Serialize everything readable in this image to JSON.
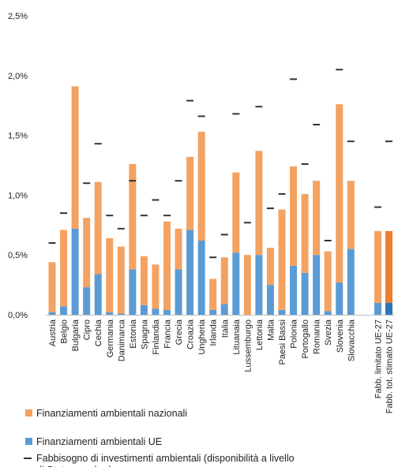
{
  "chart_data": {
    "type": "bar",
    "stacked": true,
    "title": "",
    "xlabel": "",
    "ylabel": "",
    "ylim": [
      0,
      2.5
    ],
    "yticks": [
      "0,0%",
      "0,5%",
      "1,0%",
      "1,5%",
      "2,0%",
      "2,5%"
    ],
    "grid": false,
    "legend_position": "bottom",
    "categories": [
      "Austria",
      "Belgio",
      "Bulgaria",
      "Cipro",
      "Cechia",
      "Germania",
      "Danimarca",
      "Estonia",
      "Spagna",
      "Finlandia",
      "Francia",
      "Grecia",
      "Croazia",
      "Ungheria",
      "Irlanda",
      "Italia",
      "Lituanaia",
      "Lussemburgo",
      "Lettonia",
      "Malta",
      "Paesi Bassi",
      "Polonia",
      "Portogallo",
      "Romania",
      "Svezia",
      "Slovenia",
      "Slovacchia"
    ],
    "summary_categories": [
      "Fabb. limitato UE-27",
      "Fabb. tot. stimato UE-27"
    ],
    "series": [
      {
        "name": "Finanziamenti ambientali UE",
        "color": "#5b9bd5",
        "values": [
          0.02,
          0.07,
          0.72,
          0.23,
          0.34,
          0.02,
          0.01,
          0.38,
          0.08,
          0.05,
          0.04,
          0.38,
          0.71,
          0.62,
          0.04,
          0.09,
          0.52,
          0.0,
          0.5,
          0.25,
          0.04,
          0.41,
          0.35,
          0.5,
          0.03,
          0.27,
          0.55
        ],
        "summary_values": [
          0.1,
          0.1
        ],
        "summary_colors": [
          "#5b9bd5",
          "#2e75b6"
        ]
      },
      {
        "name": "Finanziamenti ambientali nazionali",
        "color": "#f4a261",
        "values": [
          0.42,
          0.64,
          1.19,
          0.58,
          0.77,
          0.62,
          0.56,
          0.88,
          0.41,
          0.37,
          0.74,
          0.34,
          0.61,
          0.91,
          0.26,
          0.39,
          0.67,
          0.5,
          0.87,
          0.31,
          0.84,
          0.83,
          0.66,
          0.62,
          0.5,
          1.49,
          0.57
        ],
        "summary_values": [
          0.6,
          0.6
        ],
        "summary_colors": [
          "#f4a261",
          "#ed7d31"
        ]
      },
      {
        "name": "Fabbisogno di investimenti ambientali (disponibilità a livello di Stato membro)",
        "type": "marker",
        "color": "#333333",
        "values": [
          0.6,
          0.85,
          null,
          1.1,
          1.43,
          0.83,
          0.72,
          1.12,
          0.83,
          0.96,
          0.83,
          1.12,
          1.79,
          1.66,
          0.48,
          0.67,
          1.68,
          0.77,
          1.74,
          0.89,
          1.01,
          1.97,
          1.26,
          1.59,
          0.62,
          2.05,
          1.45
        ],
        "summary_values": [
          0.9,
          1.45
        ]
      }
    ],
    "legend": [
      "Finanziamenti ambientali nazionali",
      "Finanziamenti ambientali UE",
      "Fabbisogno di investimenti ambientali (disponibilità a livello di Stato membro)"
    ]
  }
}
